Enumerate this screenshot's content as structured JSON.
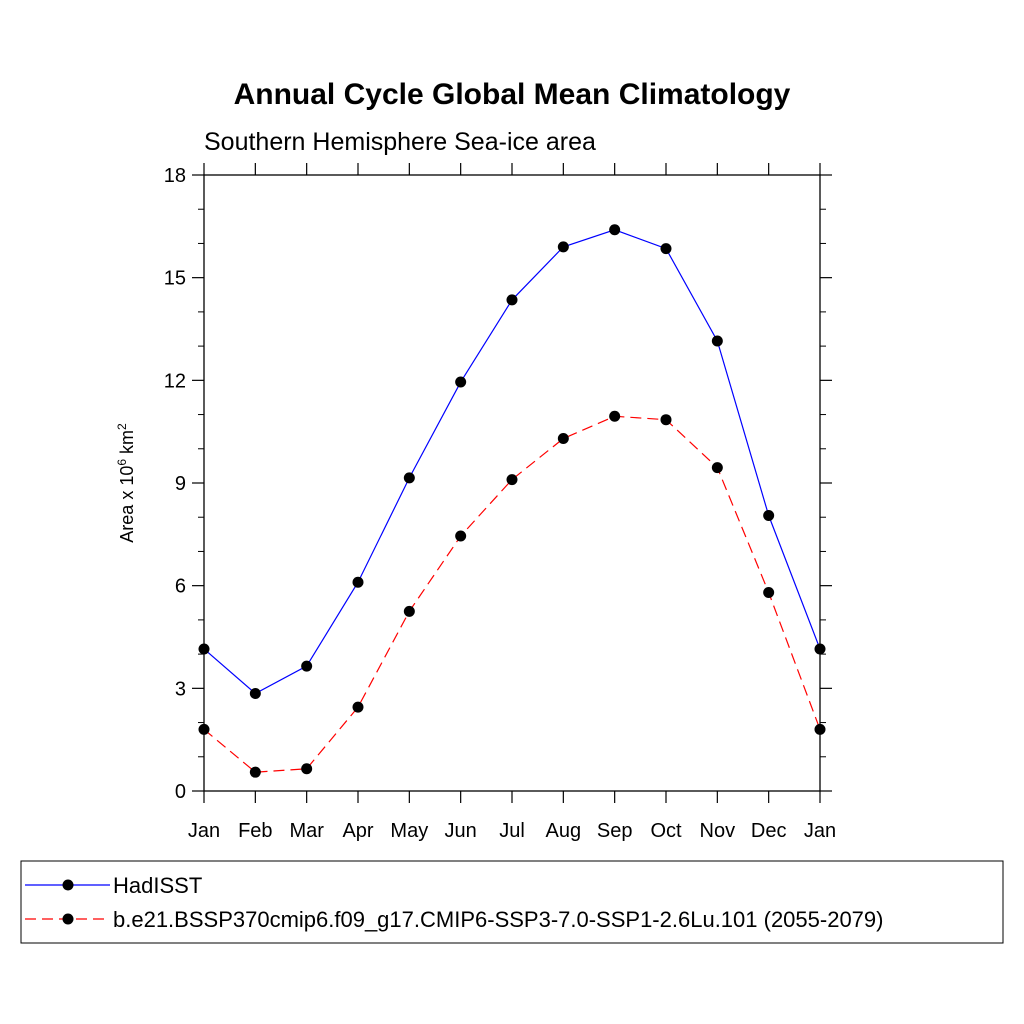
{
  "chart_data": {
    "type": "line",
    "title": "Annual Cycle Global Mean Climatology",
    "subtitle": "Southern Hemisphere Sea-ice area",
    "ylabel": {
      "base": "Area x 10",
      "exp1": "6",
      "unit": " km",
      "exp2": "2"
    },
    "xlabel": "",
    "categories": [
      "Jan",
      "Feb",
      "Mar",
      "Apr",
      "May",
      "Jun",
      "Jul",
      "Aug",
      "Sep",
      "Oct",
      "Nov",
      "Dec",
      "Jan"
    ],
    "ylim": [
      0,
      18
    ],
    "yticks": [
      "0",
      "3",
      "6",
      "9",
      "12",
      "15",
      "18"
    ],
    "ytick_values": [
      0,
      3,
      6,
      9,
      12,
      15,
      18
    ],
    "grid": false,
    "legend_position": "bottom",
    "series": [
      {
        "name": "HadISST",
        "color": "#0000ff",
        "dash": "solid",
        "values": [
          4.15,
          2.85,
          3.65,
          6.1,
          9.15,
          11.95,
          14.35,
          15.9,
          16.4,
          15.85,
          13.15,
          8.05,
          4.15
        ]
      },
      {
        "name": "b.e21.BSSP370cmip6.f09_g17.CMIP6-SSP3-7.0-SSP1-2.6Lu.101 (2055-2079)",
        "color": "#ff0000",
        "dash": "dashed",
        "values": [
          1.8,
          0.55,
          0.65,
          2.45,
          5.25,
          7.45,
          9.1,
          10.3,
          10.95,
          10.85,
          9.45,
          5.8,
          1.8
        ]
      }
    ]
  }
}
